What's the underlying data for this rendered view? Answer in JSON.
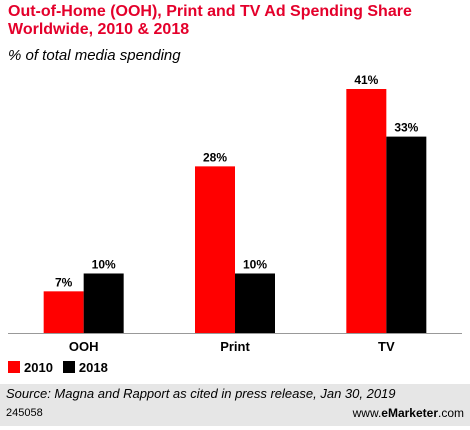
{
  "chart_data": {
    "type": "bar",
    "title": "Out-of-Home (OOH), Print and TV Ad Spending Share Worldwide, 2010 & 2018",
    "subtitle": "% of total media spending",
    "categories": [
      "OOH",
      "Print",
      "TV"
    ],
    "series": [
      {
        "name": "2010",
        "values": [
          7,
          28,
          41
        ],
        "labels": [
          "7%",
          "28%",
          "41%"
        ],
        "color": "#ff0000"
      },
      {
        "name": "2018",
        "values": [
          10,
          10,
          33
        ],
        "labels": [
          "10%",
          "10%",
          "33%"
        ],
        "color": "#000000"
      }
    ],
    "ylim": [
      0,
      41
    ],
    "grid": false,
    "legend": "bottom-left",
    "source": "Source: Magna and Rapport as cited in press release, Jan 30, 2019",
    "chart_id": "245058",
    "brand": {
      "prefix": "www.",
      "name": "eMarketer",
      "suffix": ".com"
    }
  },
  "colors": {
    "title": "#e4002b",
    "footer_bg": "#e6e6e6",
    "axis": "#999999"
  }
}
